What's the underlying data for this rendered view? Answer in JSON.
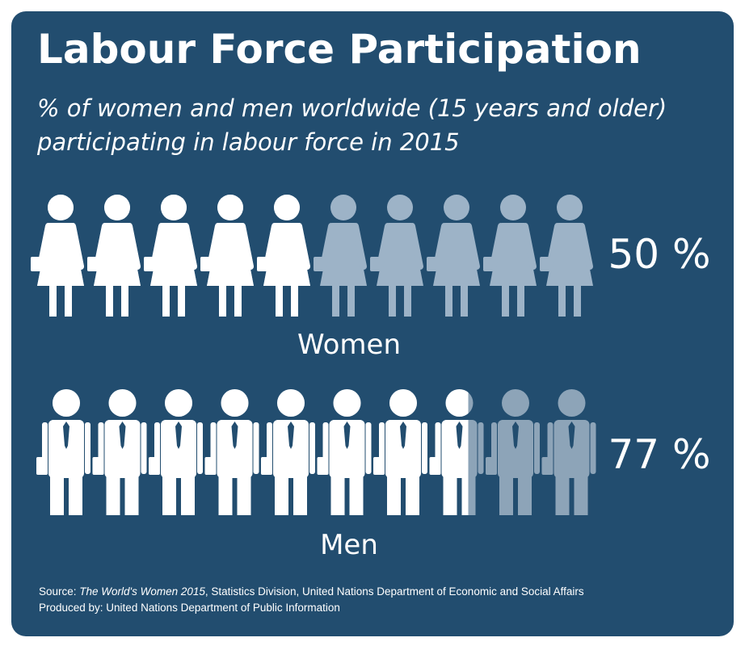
{
  "chart_data": {
    "type": "pictogram",
    "title": "Labour Force Participation",
    "subtitle": [
      "% of women and men worldwide (15 years and older)",
      "participating in labour force in 2015"
    ],
    "categories": [
      "Women",
      "Men"
    ],
    "values": [
      50,
      77
    ],
    "value_labels": [
      "50 %",
      "77 %"
    ],
    "xlim": [
      0,
      100
    ],
    "source": [
      "Source: ",
      "The World's Women 2015",
      ", Statistics Division, United Nations Department of Economic and Social Affairs"
    ],
    "produced_by": "Produced by: United Nations Department of Public Information"
  }
}
